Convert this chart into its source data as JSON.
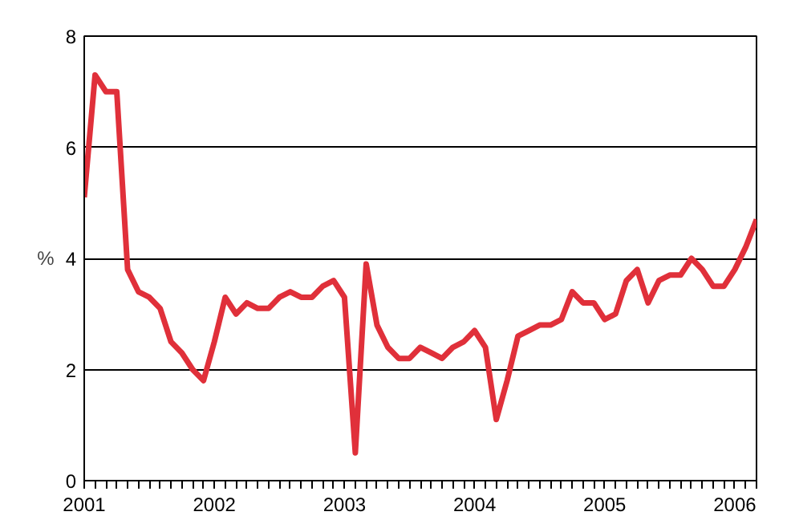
{
  "chart_data": {
    "type": "line",
    "ylabel": "%",
    "x": [
      "2001-01",
      "2001-02",
      "2001-03",
      "2001-04",
      "2001-05",
      "2001-06",
      "2001-07",
      "2001-08",
      "2001-09",
      "2001-10",
      "2001-11",
      "2001-12",
      "2002-01",
      "2002-02",
      "2002-03",
      "2002-04",
      "2002-05",
      "2002-06",
      "2002-07",
      "2002-08",
      "2002-09",
      "2002-10",
      "2002-11",
      "2002-12",
      "2003-01",
      "2003-02",
      "2003-03",
      "2003-04",
      "2003-05",
      "2003-06",
      "2003-07",
      "2003-08",
      "2003-09",
      "2003-10",
      "2003-11",
      "2003-12",
      "2004-01",
      "2004-02",
      "2004-03",
      "2004-04",
      "2004-05",
      "2004-06",
      "2004-07",
      "2004-08",
      "2004-09",
      "2004-10",
      "2004-11",
      "2004-12",
      "2005-01",
      "2005-02",
      "2005-03",
      "2005-04",
      "2005-05",
      "2005-06",
      "2005-07",
      "2005-08",
      "2005-09",
      "2005-10",
      "2005-11",
      "2005-12",
      "2006-01",
      "2006-02",
      "2006-03"
    ],
    "series": [
      {
        "color": "#e0303a",
        "values": [
          5.1,
          7.3,
          7.0,
          7.0,
          3.8,
          3.4,
          3.3,
          3.1,
          2.5,
          2.3,
          2.0,
          1.8,
          2.5,
          3.3,
          3.0,
          3.2,
          3.1,
          3.1,
          3.3,
          3.4,
          3.3,
          3.3,
          3.5,
          3.6,
          3.3,
          0.5,
          3.9,
          2.8,
          2.4,
          2.2,
          2.2,
          2.4,
          2.3,
          2.2,
          2.4,
          2.5,
          2.7,
          2.4,
          1.1,
          1.8,
          2.6,
          2.7,
          2.8,
          2.8,
          2.9,
          3.4,
          3.2,
          3.2,
          2.9,
          3.0,
          3.6,
          3.8,
          3.2,
          3.6,
          3.7,
          3.7,
          4.0,
          3.8,
          3.5,
          3.5,
          3.8,
          4.2,
          4.7
        ]
      }
    ],
    "xlim": [
      "2001-01",
      "2006-03"
    ],
    "xticks": [
      {
        "value": "2001-01",
        "label": "2001"
      },
      {
        "value": "2002-01",
        "label": "2002"
      },
      {
        "value": "2003-01",
        "label": "2003"
      },
      {
        "value": "2004-01",
        "label": "2004"
      },
      {
        "value": "2005-01",
        "label": "2005"
      },
      {
        "value": "2006-01",
        "label": "2006"
      }
    ],
    "ylim": [
      0,
      8
    ],
    "yticks": [
      0,
      2,
      4,
      6,
      8
    ],
    "grid": "y",
    "marker": "none",
    "line_style": "solid"
  }
}
